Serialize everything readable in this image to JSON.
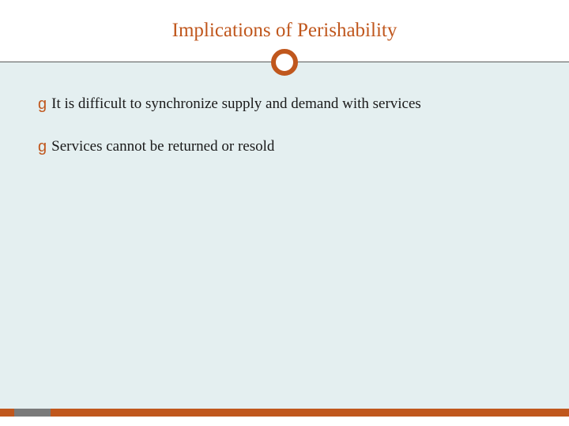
{
  "slide": {
    "title": "Implications of Perishability",
    "title_color": "#c0571d",
    "title_fontsize": 25,
    "background_color": "#ffffff",
    "content_background": "#e4eff0",
    "divider_color": "#5a5a5a",
    "ring_color": "#c0571d",
    "ring_stroke_width": 6,
    "bottom_bar_color": "#c0571d",
    "bottom_tab_color": "#7a7a7a",
    "bullets": [
      {
        "text": "It is difficult to synchronize supply and demand with services"
      },
      {
        "text": "Services cannot be returned or resold"
      }
    ],
    "bullet_marker": "g",
    "bullet_marker_color": "#c0571d",
    "bullet_text_color": "#1a1a1a",
    "bullet_fontsize": 19
  }
}
